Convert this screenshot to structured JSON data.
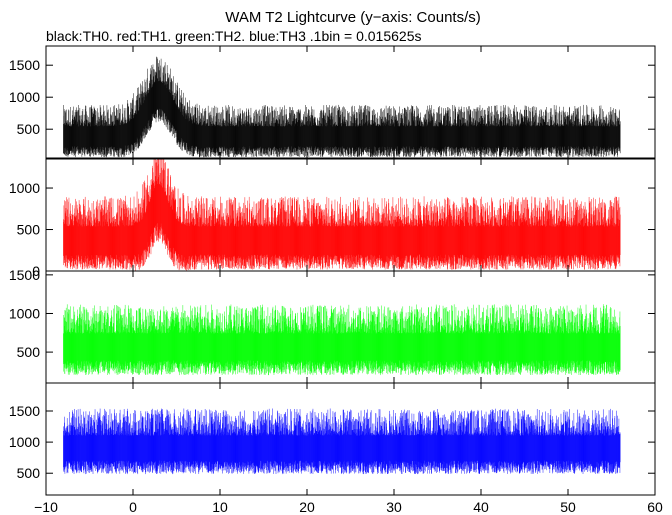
{
  "chart_data": {
    "type": "line",
    "title": "WAM T2 Lightcurve (y−axis: Counts/s)",
    "subtitle": "black:TH0. red:TH1. green:TH2. blue:TH3 .1bin = 0.015625s",
    "xlabel": "",
    "ylabel": "",
    "grid": false,
    "x_ticks": [
      "−10",
      "0",
      "10",
      "20",
      "30",
      "40",
      "50",
      "60"
    ],
    "x_tick_values": [
      -10,
      0,
      10,
      20,
      30,
      40,
      50,
      60
    ],
    "xlim": [
      -10,
      60
    ],
    "x_data_range": [
      -8,
      56
    ],
    "panels": [
      {
        "name": "TH0",
        "color": "#000000",
        "ylim": [
          50,
          1800
        ],
        "y_ticks": [
          "500",
          "1000",
          "1500"
        ],
        "y_tick_values": [
          500,
          1000,
          1500
        ],
        "baseline": 400,
        "noise_amplitude": 480,
        "burst": {
          "peak_time": 3,
          "peak_height": 650,
          "width": 2.2
        }
      },
      {
        "name": "TH1",
        "color": "#ff0000",
        "ylim": [
          0,
          1350
        ],
        "y_ticks": [
          "0",
          "500",
          "1000"
        ],
        "y_tick_values": [
          0,
          500,
          1000
        ],
        "baseline": 380,
        "noise_amplitude": 520,
        "burst": {
          "peak_time": 3,
          "peak_height": 450,
          "width": 1.4
        }
      },
      {
        "name": "TH2",
        "color": "#00ff00",
        "ylim": [
          100,
          1550
        ],
        "y_ticks": [
          "500",
          "1000",
          "1500"
        ],
        "y_tick_values": [
          500,
          1000,
          1500
        ],
        "baseline": 580,
        "noise_amplitude": 540,
        "burst": null
      },
      {
        "name": "TH3",
        "color": "#0000ff",
        "ylim": [
          150,
          1950
        ],
        "y_ticks": [
          "500",
          "1000",
          "1500"
        ],
        "y_tick_values": [
          500,
          1000,
          1500
        ],
        "baseline": 920,
        "noise_amplitude": 620,
        "burst": null
      }
    ]
  }
}
